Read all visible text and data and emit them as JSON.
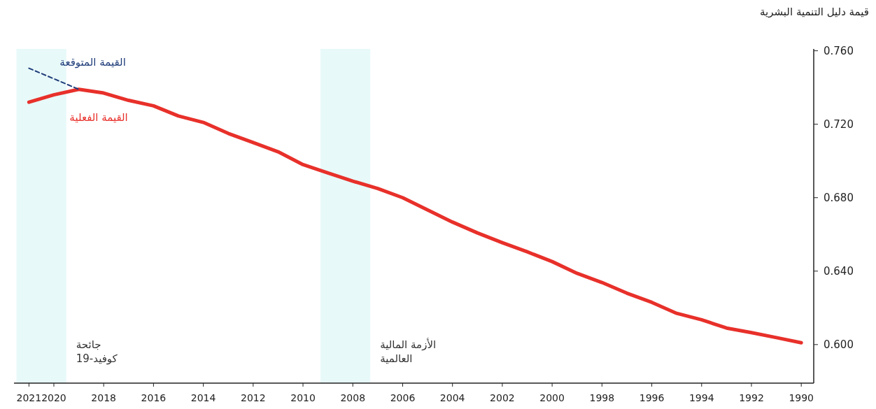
{
  "chart_data": {
    "type": "line",
    "ylabel": "قيمة دليل التنمية البشرية",
    "x": [
      2021,
      2020,
      2019,
      2018,
      2017,
      2016,
      2015,
      2014,
      2013,
      2012,
      2011,
      2010,
      2009,
      2008,
      2007,
      2006,
      2005,
      2004,
      2003,
      2002,
      2001,
      2000,
      1999,
      1998,
      1997,
      1996,
      1995,
      1994,
      1993,
      1992,
      1991,
      1990
    ],
    "series": [
      {
        "name": "القيمة الفعلية",
        "color": "#e8302a",
        "line_style": "solid",
        "values": [
          0.732,
          0.736,
          0.739,
          0.737,
          0.733,
          0.73,
          0.7245,
          0.721,
          0.715,
          0.71,
          0.705,
          0.698,
          0.6935,
          0.689,
          0.685,
          0.68,
          0.6733,
          0.6667,
          0.6608,
          0.6555,
          0.6505,
          0.6452,
          0.6388,
          0.6338,
          0.628,
          0.623,
          0.617,
          0.6135,
          0.609,
          0.6065,
          0.6038,
          0.601
        ]
      },
      {
        "name": "القيمة المتوقعة",
        "color": "#1f3d7a",
        "line_style": "dashed",
        "x": [
          2021,
          2019
        ],
        "values": [
          0.7505,
          0.739
        ]
      }
    ],
    "xlim": [
      2021.6,
      1989.5
    ],
    "ylim": [
      0.579,
      0.761
    ],
    "xticks": [
      2021,
      2020,
      2018,
      2016,
      2014,
      2012,
      2010,
      2008,
      2006,
      2004,
      2002,
      2000,
      1998,
      1996,
      1994,
      1992,
      1990
    ],
    "yticks": [
      {
        "value": 0.6,
        "label": "0.600"
      },
      {
        "value": 0.64,
        "label": "0.640"
      },
      {
        "value": 0.68,
        "label": "0.680"
      },
      {
        "value": 0.72,
        "label": "0.720"
      },
      {
        "value": 0.76,
        "label": "0.760"
      }
    ],
    "bands": [
      {
        "axis": "x",
        "from": 2021.5,
        "to": 2019.5,
        "label": "جائحة\nكوفيد-19",
        "color": "#e8f9f9"
      },
      {
        "axis": "x",
        "from": 2009.3,
        "to": 2007.3,
        "label": "الأزمة المالية\nالعالمية",
        "color": "#e8f9f9"
      }
    ],
    "grid": false
  }
}
